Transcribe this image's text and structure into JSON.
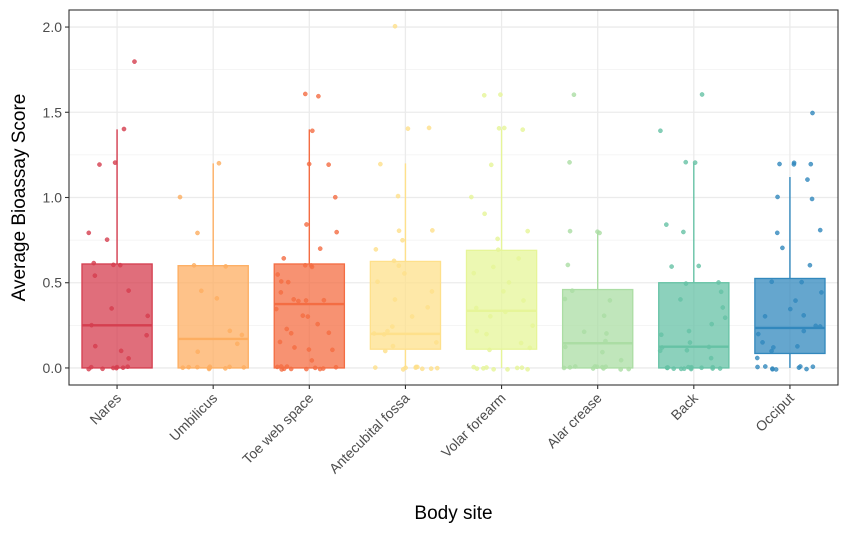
{
  "chart_data": {
    "type": "box",
    "xlabel": "Body site",
    "ylabel": "Average Bioassay Score",
    "ylim": [
      -0.1,
      2.1
    ],
    "yticks": [
      0.0,
      0.5,
      1.0,
      1.5,
      2.0
    ],
    "ytick_labels": [
      "0.0",
      "0.5",
      "1.0",
      "1.5",
      "2.0"
    ],
    "grid": true,
    "theme": "bw",
    "categories": [
      "Nares",
      "Umbilicus",
      "Toe web space",
      "Antecubital fossa",
      "Volar forearm",
      "Alar crease",
      "Back",
      "Occiput"
    ],
    "colors": [
      "#D53E4F",
      "#FDAE61",
      "#F46D43",
      "#FEE08B",
      "#E6F598",
      "#ABDDA4",
      "#66C2A5",
      "#3288BD"
    ],
    "boxes": [
      {
        "category": "Nares",
        "q1": 0.0,
        "median": 0.25,
        "q3": 0.61,
        "whisker_low": 0.0,
        "whisker_high": 1.4,
        "points": [
          0,
          0,
          0,
          0,
          0,
          0,
          0,
          0,
          0.05,
          0.1,
          0.12,
          0.2,
          0.25,
          0.3,
          0.35,
          0.45,
          0.55,
          0.6,
          0.6,
          0.62,
          0.75,
          0.8,
          1.2,
          1.2,
          1.4,
          1.8
        ]
      },
      {
        "category": "Umbilicus",
        "q1": 0.0,
        "median": 0.17,
        "q3": 0.6,
        "whisker_low": 0.0,
        "whisker_high": 1.2,
        "points": [
          0,
          0,
          0,
          0,
          0,
          0,
          0,
          0,
          0,
          0,
          0.1,
          0.15,
          0.2,
          0.22,
          0.4,
          0.45,
          0.6,
          0.6,
          0.8,
          1.0,
          1.2
        ]
      },
      {
        "category": "Toe web space",
        "q1": 0.0,
        "median": 0.375,
        "q3": 0.61,
        "whisker_low": 0.0,
        "whisker_high": 1.4,
        "points": [
          0,
          0,
          0,
          0,
          0,
          0,
          0,
          0,
          0,
          0,
          0,
          0.05,
          0.1,
          0.1,
          0.12,
          0.15,
          0.2,
          0.2,
          0.22,
          0.25,
          0.3,
          0.3,
          0.35,
          0.4,
          0.4,
          0.4,
          0.4,
          0.45,
          0.5,
          0.5,
          0.55,
          0.6,
          0.6,
          0.6,
          0.65,
          0.7,
          0.8,
          0.85,
          1.0,
          1.2,
          1.2,
          1.4,
          1.6,
          1.6
        ]
      },
      {
        "category": "Antecubital fossa",
        "q1": 0.11,
        "median": 0.2,
        "q3": 0.625,
        "whisker_low": 0.0,
        "whisker_high": 1.2,
        "points": [
          0,
          0,
          0,
          0,
          0,
          0,
          0,
          0,
          0,
          0.1,
          0.12,
          0.15,
          0.2,
          0.2,
          0.22,
          0.25,
          0.3,
          0.35,
          0.4,
          0.45,
          0.5,
          0.55,
          0.6,
          0.62,
          0.7,
          0.75,
          0.8,
          0.8,
          1.0,
          1.2,
          1.4,
          1.4,
          2.0
        ]
      },
      {
        "category": "Volar forearm",
        "q1": 0.11,
        "median": 0.335,
        "q3": 0.69,
        "whisker_low": 0.0,
        "whisker_high": 1.4,
        "points": [
          0,
          0,
          0,
          0,
          0,
          0,
          0,
          0,
          0,
          0.1,
          0.12,
          0.15,
          0.2,
          0.22,
          0.25,
          0.3,
          0.33,
          0.35,
          0.4,
          0.45,
          0.5,
          0.55,
          0.6,
          0.65,
          0.7,
          0.75,
          0.8,
          0.9,
          1.0,
          1.2,
          1.4,
          1.4,
          1.4,
          1.6,
          1.6
        ]
      },
      {
        "category": "Alar crease",
        "q1": 0.0,
        "median": 0.145,
        "q3": 0.46,
        "whisker_low": 0.0,
        "whisker_high": 0.8,
        "points": [
          0,
          0,
          0,
          0,
          0,
          0,
          0,
          0,
          0,
          0,
          0,
          0.05,
          0.1,
          0.12,
          0.15,
          0.2,
          0.22,
          0.3,
          0.4,
          0.4,
          0.45,
          0.6,
          0.8,
          0.8,
          0.8,
          1.2,
          1.6
        ]
      },
      {
        "category": "Back",
        "q1": 0.0,
        "median": 0.125,
        "q3": 0.5,
        "whisker_low": 0.0,
        "whisker_high": 1.2,
        "points": [
          0,
          0,
          0,
          0,
          0,
          0,
          0,
          0,
          0,
          0,
          0,
          0,
          0,
          0,
          0,
          0.05,
          0.1,
          0.1,
          0.12,
          0.12,
          0.15,
          0.2,
          0.22,
          0.25,
          0.3,
          0.35,
          0.4,
          0.45,
          0.5,
          0.5,
          0.6,
          0.6,
          0.8,
          0.84,
          1.2,
          1.2,
          1.4,
          1.6
        ]
      },
      {
        "category": "Occiput",
        "q1": 0.085,
        "median": 0.235,
        "q3": 0.525,
        "whisker_low": 0.0,
        "whisker_high": 1.12,
        "points": [
          0,
          0,
          0,
          0,
          0,
          0,
          0,
          0,
          0,
          0.05,
          0.1,
          0.12,
          0.12,
          0.15,
          0.2,
          0.22,
          0.24,
          0.25,
          0.3,
          0.3,
          0.35,
          0.4,
          0.45,
          0.5,
          0.5,
          0.6,
          0.7,
          0.8,
          0.8,
          1.0,
          1.0,
          1.1,
          1.2,
          1.2,
          1.2,
          1.2,
          1.5
        ]
      }
    ]
  }
}
